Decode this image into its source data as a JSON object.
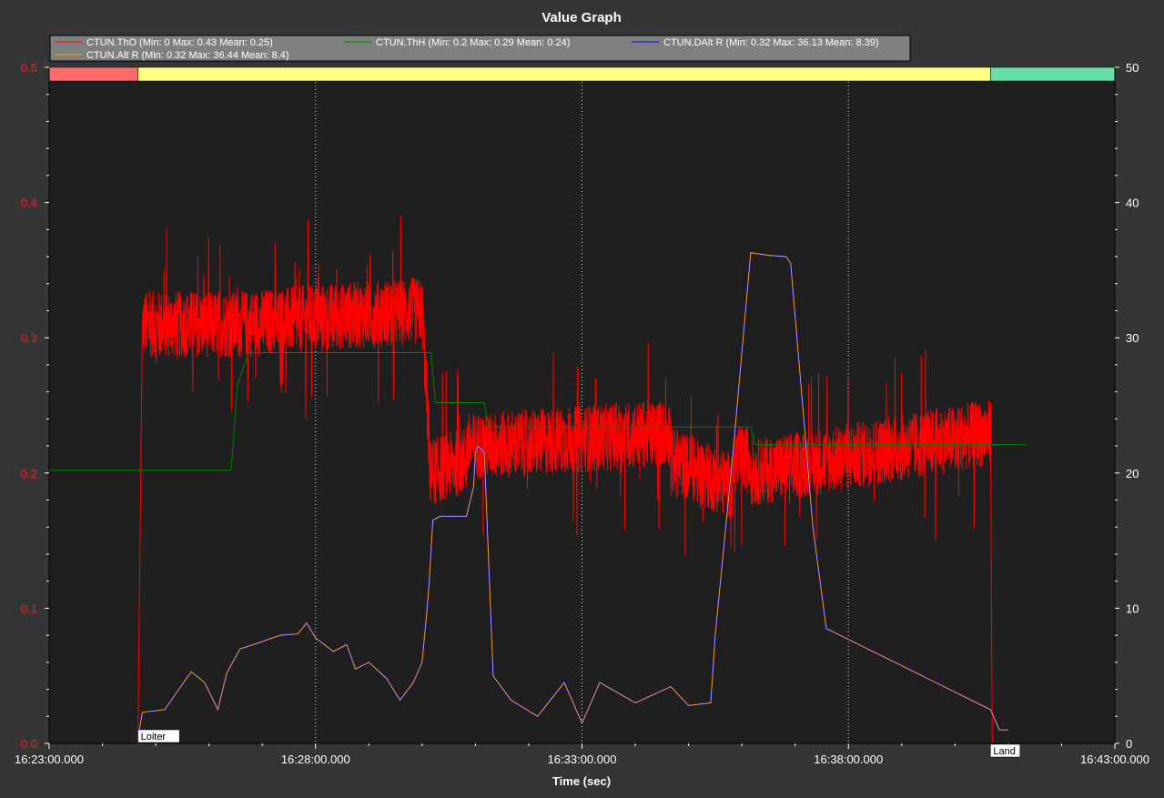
{
  "chart_data": {
    "type": "line",
    "title": "Value Graph",
    "xlabel": "Time (sec)",
    "ylabel": "",
    "ylabel_right": "",
    "x_ticks": [
      "16:23:00.000",
      "16:28:00.000",
      "16:33:00.000",
      "16:38:00.000",
      "16:43:00.000"
    ],
    "xlim_seconds": [
      0,
      1200
    ],
    "ylim_left": [
      0,
      0.5
    ],
    "ylim_right": [
      0,
      50
    ],
    "y_ticks_left": [
      "0.0",
      "0.1",
      "0.2",
      "0.3",
      "0.4",
      "0.5"
    ],
    "y_ticks_right": [
      "0",
      "10",
      "20",
      "30",
      "40",
      "50"
    ],
    "grid": "x-dotted",
    "legend_position": "top-left",
    "legend": [
      {
        "label": "CTUN.ThO  (Min: 0 Max: 0.43 Mean: 0.25)",
        "color": "#ff0000"
      },
      {
        "label": "CTUN.ThH  (Min: 0.2 Max: 0.29 Mean: 0.24)",
        "color": "#008000"
      },
      {
        "label": "CTUN.DAlt  R (Min: 0.32 Max: 36.13 Mean: 8.39)",
        "color": "#0000ff"
      },
      {
        "label": "CTUN.Alt  R (Min: 0.32 Max: 36.44 Mean: 8.4)",
        "color": "#ffa500"
      }
    ],
    "mode_bands": [
      {
        "start": 0,
        "end": 100,
        "color": "#ff6b6b"
      },
      {
        "start": 100,
        "end": 1060,
        "color": "#ffff80"
      },
      {
        "start": 1060,
        "end": 1200,
        "color": "#66e0a6"
      }
    ],
    "mode_labels": [
      {
        "text": "Loiter",
        "x": 100
      },
      {
        "text": "Land",
        "x": 1060
      }
    ],
    "series": [
      {
        "name": "CTUN.ThO",
        "axis": "left",
        "color": "#ff0000",
        "mean_segments": [
          {
            "x": [
              100,
              105
            ],
            "y": [
              0.0,
              0.31
            ]
          },
          {
            "x": [
              105,
              215
            ],
            "y": [
              0.31,
              0.31
            ]
          },
          {
            "x": [
              215,
              300
            ],
            "y": [
              0.31,
              0.315
            ]
          },
          {
            "x": [
              300,
              420
            ],
            "y": [
              0.315,
              0.32
            ]
          },
          {
            "x": [
              420,
              428
            ],
            "y": [
              0.32,
              0.22
            ]
          },
          {
            "x": [
              428,
              470
            ],
            "y": [
              0.2,
              0.21
            ]
          },
          {
            "x": [
              470,
              490
            ],
            "y": [
              0.22,
              0.22
            ]
          },
          {
            "x": [
              490,
              700
            ],
            "y": [
              0.22,
              0.23
            ]
          },
          {
            "x": [
              700,
              770
            ],
            "y": [
              0.21,
              0.19
            ]
          },
          {
            "x": [
              770,
              790
            ],
            "y": [
              0.21,
              0.21
            ]
          },
          {
            "x": [
              790,
              1060
            ],
            "y": [
              0.2,
              0.23
            ]
          },
          {
            "x": [
              1060,
              1062
            ],
            "y": [
              0.23,
              0.0
            ]
          }
        ],
        "noise_amplitude": 0.025
      },
      {
        "name": "CTUN.ThH",
        "axis": "left",
        "color": "#008000",
        "x": [
          0,
          205,
          212,
          220,
          225,
          430,
          435,
          490,
          495,
          790,
          795,
          1100
        ],
        "y": [
          0.202,
          0.202,
          0.265,
          0.28,
          0.289,
          0.289,
          0.252,
          0.252,
          0.234,
          0.234,
          0.221,
          0.221
        ]
      },
      {
        "name": "CTUN.DAlt  R",
        "axis": "right",
        "color": "#0000ff",
        "x": [
          100,
          105,
          130,
          160,
          175,
          190,
          200,
          215,
          230,
          260,
          280,
          290,
          300,
          320,
          335,
          345,
          360,
          380,
          395,
          410,
          420,
          425,
          428,
          432,
          440,
          470,
          478,
          480,
          483,
          490,
          500,
          520,
          550,
          580,
          600,
          620,
          660,
          700,
          720,
          745,
          750,
          770,
          790,
          810,
          830,
          835,
          860,
          875,
          1060,
          1070,
          1080
        ],
        "y": [
          0.4,
          2.3,
          2.5,
          5.3,
          4.5,
          2.5,
          5.2,
          7.0,
          7.3,
          8.0,
          8.1,
          8.9,
          7.8,
          6.8,
          7.3,
          5.5,
          6.0,
          4.8,
          3.2,
          4.5,
          6.0,
          9.5,
          12.0,
          16.5,
          16.8,
          16.8,
          19.0,
          21.5,
          22.0,
          21.5,
          5.0,
          3.2,
          2.0,
          4.5,
          1.5,
          4.5,
          3.0,
          4.2,
          2.8,
          3.0,
          8.0,
          21.5,
          36.3,
          36.1,
          36.0,
          35.5,
          16.0,
          8.5,
          2.5,
          1.0,
          1.0
        ]
      },
      {
        "name": "CTUN.Alt  R",
        "axis": "right",
        "color": "#ffa500",
        "x": [
          100,
          105,
          130,
          160,
          175,
          190,
          200,
          215,
          230,
          260,
          280,
          290,
          300,
          320,
          335,
          345,
          360,
          380,
          395,
          410,
          420,
          425,
          428,
          432,
          440,
          470,
          478,
          480,
          483,
          490,
          500,
          520,
          550,
          580,
          600,
          620,
          660,
          700,
          720,
          745,
          750,
          770,
          790,
          810,
          830,
          835,
          860,
          875,
          1060,
          1070,
          1080
        ],
        "y": [
          0.4,
          2.3,
          2.5,
          5.3,
          4.5,
          2.5,
          5.2,
          7.0,
          7.3,
          8.0,
          8.1,
          8.9,
          7.8,
          6.8,
          7.3,
          5.5,
          6.0,
          4.8,
          3.2,
          4.5,
          6.0,
          9.5,
          12.0,
          16.5,
          16.8,
          16.8,
          19.0,
          21.5,
          22.0,
          21.5,
          5.0,
          3.2,
          2.0,
          4.5,
          1.5,
          4.5,
          3.0,
          4.2,
          2.8,
          3.0,
          8.0,
          21.5,
          36.3,
          36.1,
          36.0,
          35.5,
          16.0,
          8.5,
          2.5,
          1.0,
          1.0
        ]
      }
    ]
  }
}
